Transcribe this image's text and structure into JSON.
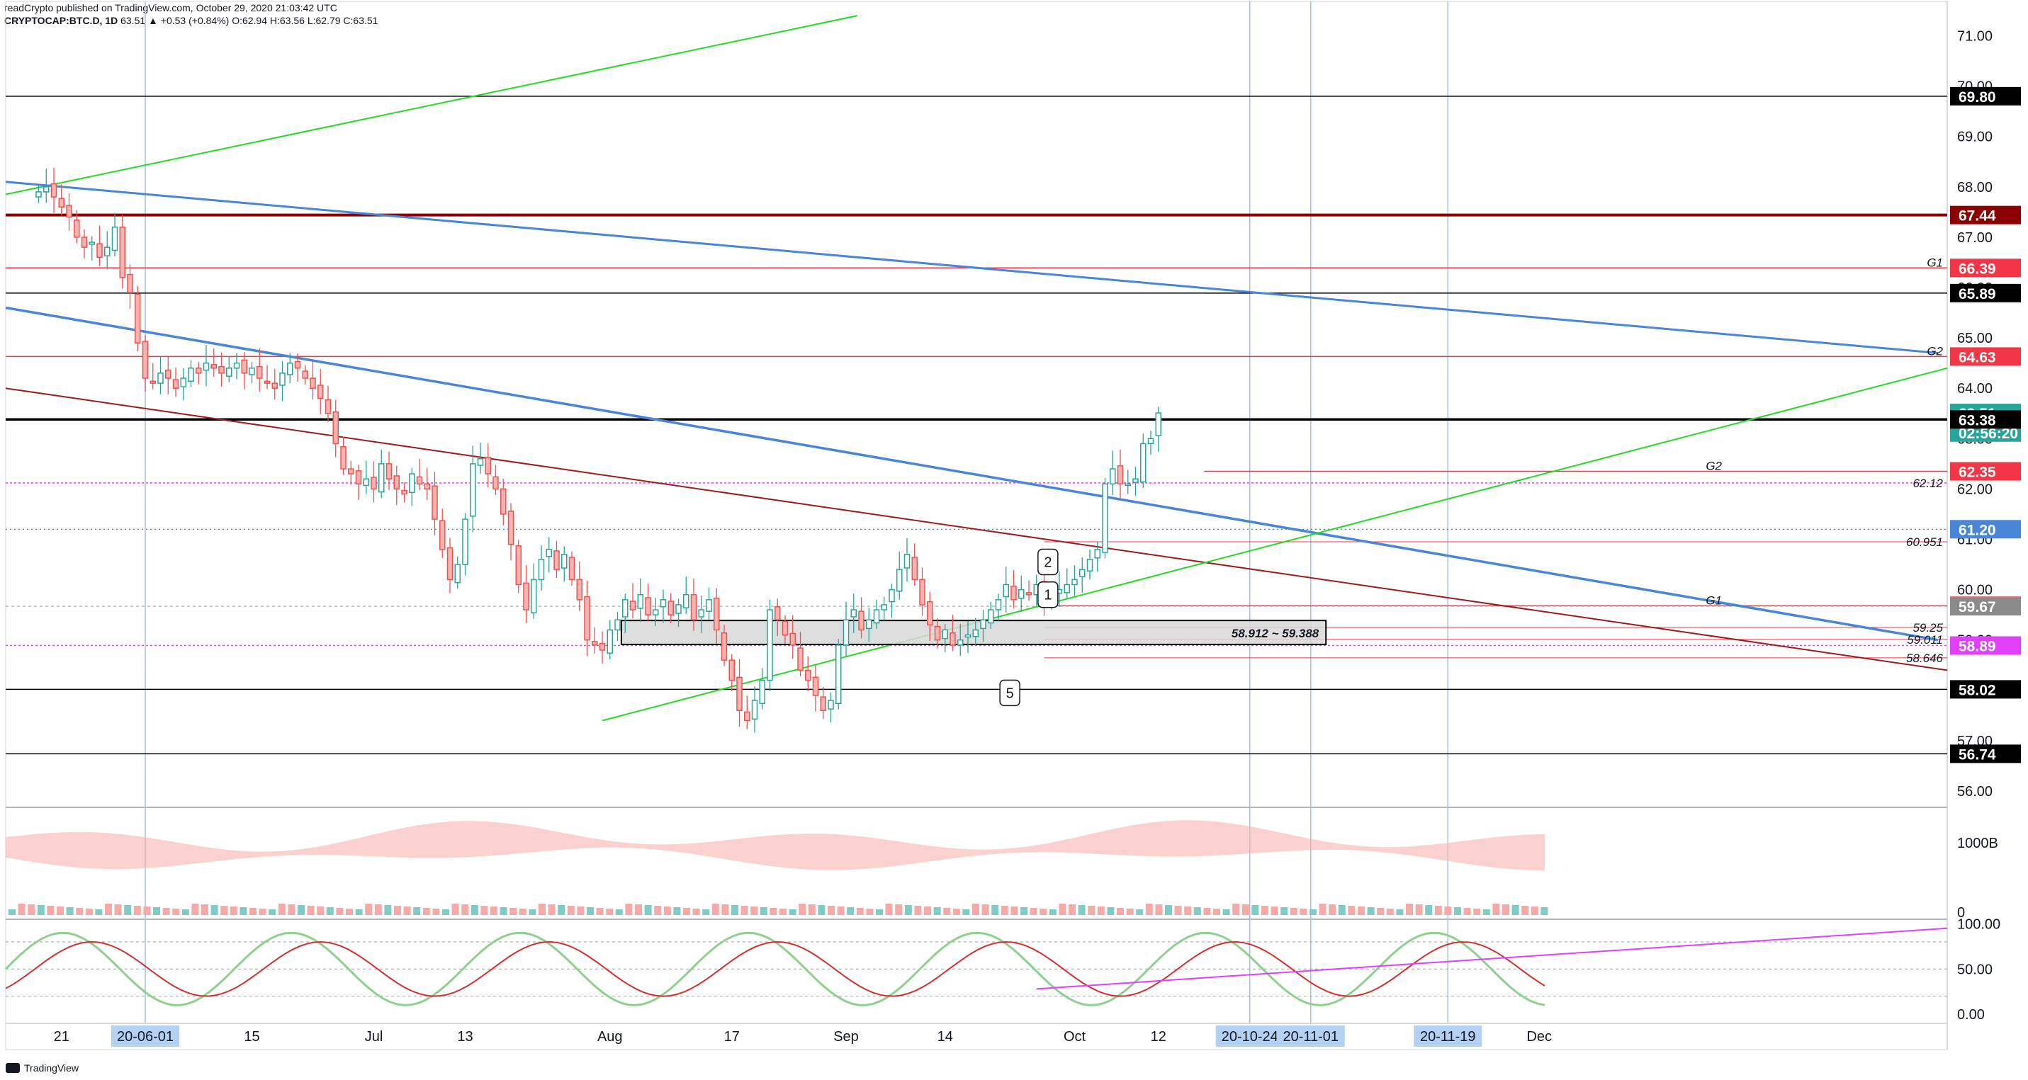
{
  "header": {
    "line1": "readCrypto published on TradingView.com, October 29, 2020 21:03:42 UTC",
    "symbol": "CRYPTOCAP:BTC.D, 1D",
    "ohlc": "63.51 ▲ +0.53 (+0.84%) O:62.94 H:63.56 L:62.79 C:63.51"
  },
  "footer": {
    "brand": "TradingView"
  },
  "colors": {
    "up": "#26a69a",
    "down": "#ef5350",
    "blue_line": "#4a86d8",
    "green_line": "#26d926",
    "dark_red": "#9b1c1c",
    "magenta": "#e040fb"
  },
  "chart_data": [
    {
      "type": "candlestick",
      "title": "",
      "ylim": [
        56,
        71.5
      ],
      "y_ticks": [
        "71.00",
        "70.00",
        "69.00",
        "68.00",
        "67.00",
        "66.00",
        "65.00",
        "64.00",
        "63.00",
        "62.00",
        "61.00",
        "60.00",
        "59.00",
        "58.00",
        "57.00",
        "56.00"
      ],
      "x_tick_labels": [
        "21",
        "15",
        "Jul",
        "13",
        "Aug",
        "17",
        "Sep",
        "14",
        "Oct",
        "12",
        "Dec"
      ],
      "x_tick_days": [
        -11,
        14,
        30,
        42,
        61,
        77,
        92,
        105,
        122,
        133,
        183
      ],
      "x_highlight_labels": [
        "20-06-01",
        "20-10-24",
        "20-11-01",
        "20-11-19"
      ],
      "x_highlight_days": [
        0,
        145,
        153,
        171
      ],
      "x_axis_note": "day index 0 = 2020-06-01",
      "candles_close": [
        67.9,
        68.0,
        67.8,
        67.6,
        67.4,
        67.0,
        66.8,
        66.9,
        66.6,
        66.8,
        67.2,
        66.2,
        65.9,
        64.9,
        64.2,
        64.1,
        64.3,
        64.2,
        64.0,
        64.2,
        64.4,
        64.3,
        64.5,
        64.4,
        64.3,
        64.4,
        64.5,
        64.3,
        64.4,
        64.2,
        64.1,
        64.0,
        64.3,
        64.5,
        64.4,
        64.2,
        64.0,
        63.8,
        63.5,
        62.9,
        62.4,
        62.3,
        62.1,
        62.2,
        62.0,
        62.5,
        62.2,
        62.0,
        61.9,
        62.3,
        62.1,
        62.0,
        61.4,
        60.8,
        60.2,
        60.5,
        61.4,
        62.5,
        62.6,
        62.3,
        62.0,
        61.5,
        60.9,
        60.1,
        59.6,
        60.2,
        60.6,
        60.8,
        60.4,
        60.7,
        60.2,
        59.8,
        59.0,
        58.9,
        58.8,
        59.2,
        59.4,
        59.8,
        59.6,
        59.9,
        59.5,
        59.6,
        59.8,
        59.5,
        59.7,
        59.9,
        59.4,
        59.6,
        59.8,
        59.2,
        58.6,
        58.2,
        57.6,
        57.4,
        57.8,
        58.2,
        59.6,
        59.4,
        59.1,
        58.9,
        58.4,
        58.2,
        57.9,
        57.6,
        57.8,
        58.9,
        59.4,
        59.6,
        59.2,
        59.4,
        59.6,
        59.7,
        60.0,
        60.4,
        60.7,
        60.2,
        59.7,
        59.3,
        59.0,
        59.2,
        58.9,
        59.0,
        59.1,
        59.2,
        59.4,
        59.6,
        59.8,
        60.1,
        59.8,
        60.0,
        59.9,
        60.1,
        59.8,
        59.9,
        60.0,
        60.1,
        60.2,
        60.4,
        60.6,
        60.8,
        62.1,
        62.4,
        62.1,
        62.1,
        62.2,
        62.9,
        63.0,
        63.51
      ],
      "annotations": {
        "levels": [
          {
            "label": "69.80",
            "value": 69.8,
            "color": "#000000"
          },
          {
            "label": "67.44",
            "value": 67.44,
            "color": "#8b0000"
          },
          {
            "label": "66.39",
            "value": 66.39,
            "color": "#f23645",
            "tag": "G1"
          },
          {
            "label": "65.89",
            "value": 65.89,
            "color": "#000000"
          },
          {
            "label": "64.63",
            "value": 64.63,
            "color": "#f23645",
            "tag": "G2"
          },
          {
            "label": "63.51",
            "value": 63.51,
            "color": "#26a69a"
          },
          {
            "label": "02:56:20",
            "value": 63.12,
            "color": "#26a69a"
          },
          {
            "label": "63.38",
            "value": 63.38,
            "color": "#000000"
          },
          {
            "label": "62.35",
            "value": 62.35,
            "color": "#f23645",
            "tag": "G2"
          },
          {
            "label": "61.20",
            "value": 61.2,
            "color": "#2962ff"
          },
          {
            "label": "59.68",
            "value": 59.68,
            "color": "#f23645",
            "tag": "G1"
          },
          {
            "label": "59.67",
            "value": 59.67,
            "color": "#808080"
          },
          {
            "label": "58.89",
            "value": 58.89,
            "color": "#e040fb"
          },
          {
            "label": "58.02",
            "value": 58.02,
            "color": "#000000"
          },
          {
            "label": "56.74",
            "value": 56.74,
            "color": "#000000"
          }
        ],
        "notes": [
          {
            "text": "62.12",
            "value": 62.12
          },
          {
            "text": "60.951",
            "value": 60.951
          },
          {
            "text": "59.25",
            "value": 59.25
          },
          {
            "text": "59.011",
            "value": 59.011
          },
          {
            "text": "58.646",
            "value": 58.646
          }
        ],
        "box_label": "58.912 ~ 59.388",
        "box_range": [
          58.912,
          59.388
        ],
        "wave_labels": [
          "2",
          "1",
          "5"
        ]
      }
    },
    {
      "type": "area",
      "title": "",
      "y_ticks": [
        "1000B",
        "0"
      ]
    },
    {
      "type": "line",
      "title": "",
      "y_ticks": [
        "100.00",
        "50.00",
        "0.00"
      ],
      "ylim": [
        -10,
        105
      ]
    }
  ]
}
